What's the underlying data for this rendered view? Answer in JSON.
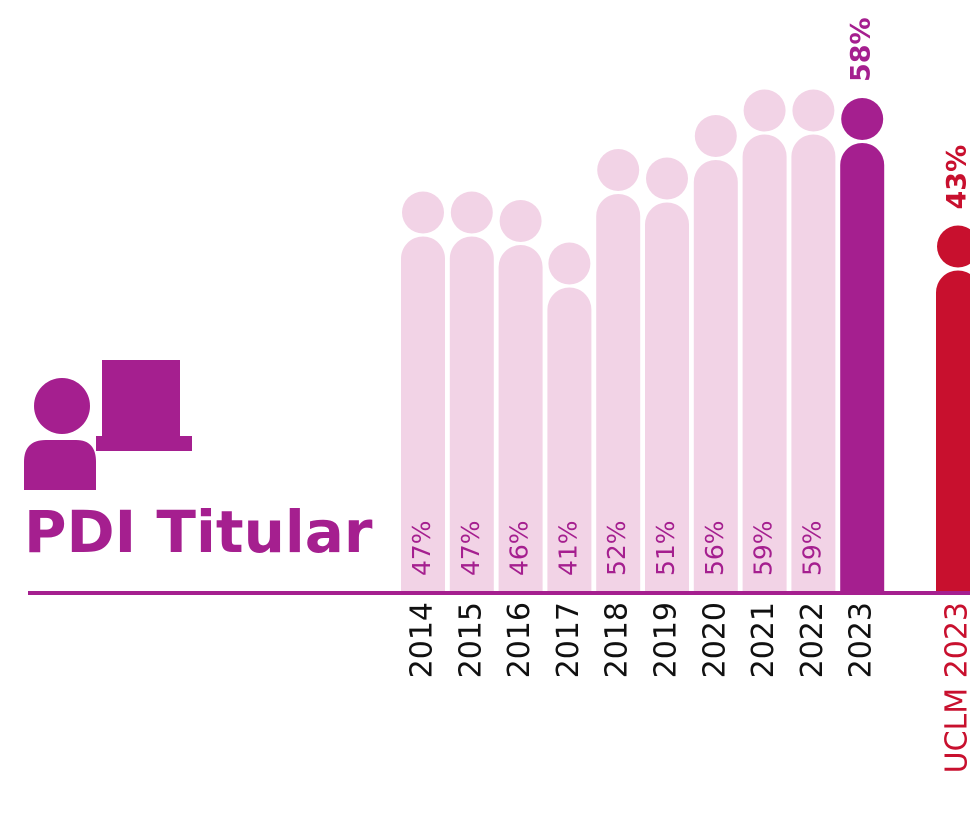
{
  "chart_data": {
    "type": "bar",
    "title": "PDI Titular",
    "categories": [
      "2014",
      "2015",
      "2016",
      "2017",
      "2018",
      "2019",
      "2020",
      "2021",
      "2022",
      "2023"
    ],
    "values": [
      47,
      47,
      46,
      41,
      52,
      51,
      56,
      59,
      59,
      58
    ],
    "value_labels": [
      "47%",
      "47%",
      "46%",
      "41%",
      "52%",
      "51%",
      "56%",
      "59%",
      "59%",
      "58%"
    ],
    "color": "#f2d3e6",
    "colors": [
      "#f2d3e6",
      "#f2d3e6",
      "#f2d3e6",
      "#f2d3e6",
      "#f2d3e6",
      "#f2d3e6",
      "#f2d3e6",
      "#f2d3e6",
      "#f2d3e6",
      "#a51f8f"
    ],
    "label_color": "#a51f8f",
    "comparison": {
      "category": "UCLM 2023",
      "value": 43,
      "value_label": "43%",
      "color": "#c8102e"
    }
  }
}
